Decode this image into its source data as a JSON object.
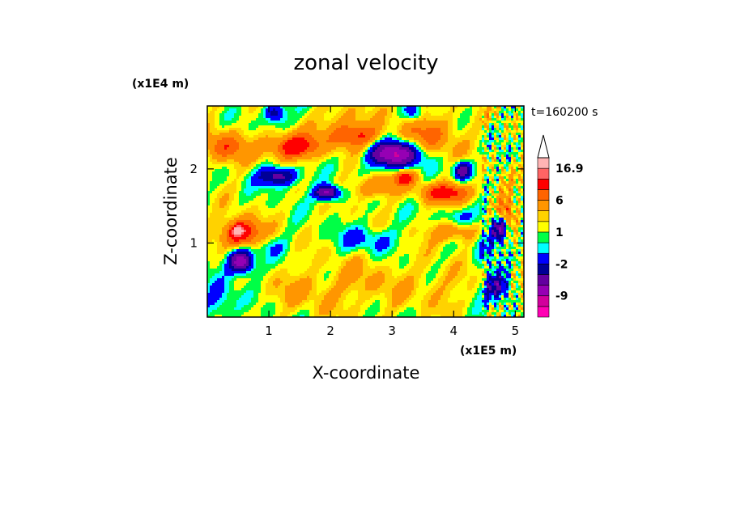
{
  "chart_data": {
    "type": "heatmap",
    "title": "zonal velocity",
    "xlabel": "X-coordinate",
    "ylabel": "Z-coordinate",
    "x_unit": "(x1E5 m)",
    "y_unit": "(x1E4 m)",
    "time_label": "t=160200 s",
    "xlim": [
      0,
      5.14
    ],
    "ylim": [
      0,
      2.85
    ],
    "x_ticks": [
      "1",
      "2",
      "3",
      "4",
      "5"
    ],
    "x_tick_values": [
      1,
      2,
      3,
      4,
      5
    ],
    "y_ticks": [
      "1",
      "2"
    ],
    "y_tick_values": [
      1,
      2
    ],
    "colorbar": {
      "labels": [
        "16.9",
        "6",
        "1",
        "-2",
        "-9"
      ],
      "label_values": [
        16.9,
        6,
        1,
        -2,
        -9
      ],
      "levels": [
        -15,
        -12,
        -9,
        -6,
        -4,
        -2,
        -1,
        0,
        1,
        2,
        4,
        6,
        9,
        12,
        16.9
      ],
      "colors": [
        "#ff00b4",
        "#d2009c",
        "#9600b4",
        "#6400a0",
        "#000096",
        "#0000ff",
        "#00ffff",
        "#00ff46",
        "#ffff00",
        "#ffd200",
        "#ff9600",
        "#ff6400",
        "#ff0000",
        "#ff6464",
        "#ffb4b4"
      ],
      "extend_top": true
    },
    "features": [
      {
        "x": 3.05,
        "z": 2.2,
        "sx": 0.28,
        "sz": 0.12,
        "v": -13
      },
      {
        "x": 0.55,
        "z": 0.75,
        "sx": 0.14,
        "sz": 0.11,
        "v": -12
      },
      {
        "x": 1.95,
        "z": 1.68,
        "sx": 0.14,
        "sz": 0.07,
        "v": -11
      },
      {
        "x": 1.15,
        "z": 1.9,
        "sx": 0.22,
        "sz": 0.09,
        "v": -8
      },
      {
        "x": 4.15,
        "z": 1.98,
        "sx": 0.1,
        "sz": 0.08,
        "v": -9
      },
      {
        "x": 4.75,
        "z": 1.2,
        "sx": 0.09,
        "sz": 0.12,
        "v": -10
      },
      {
        "x": 4.72,
        "z": 0.4,
        "sx": 0.15,
        "sz": 0.13,
        "v": -7
      },
      {
        "x": 1.1,
        "z": 2.75,
        "sx": 0.12,
        "sz": 0.1,
        "v": -6
      },
      {
        "x": 3.35,
        "z": 2.75,
        "sx": 0.1,
        "sz": 0.08,
        "v": -4
      },
      {
        "x": 1.4,
        "z": 2.3,
        "sx": 0.3,
        "sz": 0.12,
        "v": 8
      },
      {
        "x": 0.55,
        "z": 1.12,
        "sx": 0.22,
        "sz": 0.14,
        "v": 9
      },
      {
        "x": 0.5,
        "z": 1.17,
        "sx": 0.05,
        "sz": 0.04,
        "v": 14
      },
      {
        "x": 2.4,
        "z": 2.45,
        "sx": 0.3,
        "sz": 0.12,
        "v": 6
      },
      {
        "x": 3.9,
        "z": 1.68,
        "sx": 0.3,
        "sz": 0.09,
        "v": 7
      },
      {
        "x": 3.2,
        "z": 1.88,
        "sx": 0.14,
        "sz": 0.07,
        "v": 6
      },
      {
        "x": 2.7,
        "z": 1.75,
        "sx": 0.25,
        "sz": 0.1,
        "v": 4
      },
      {
        "x": 4.0,
        "z": 1.15,
        "sx": 0.3,
        "sz": 0.1,
        "v": 4
      },
      {
        "x": 3.6,
        "z": 2.45,
        "sx": 0.35,
        "sz": 0.2,
        "v": 4
      },
      {
        "x": 0.3,
        "z": 2.3,
        "sx": 0.25,
        "sz": 0.15,
        "v": 5
      },
      {
        "x": 4.85,
        "z": 1.4,
        "sx": 0.12,
        "sz": 0.15,
        "v": 6
      },
      {
        "x": 2.6,
        "z": 1.05,
        "sx": 0.35,
        "sz": 0.12,
        "v": -3
      },
      {
        "x": 4.1,
        "z": 1.35,
        "sx": 0.2,
        "sz": 0.08,
        "v": -3
      },
      {
        "x": 4.5,
        "z": 1.05,
        "sx": 0.12,
        "sz": 0.25,
        "v": -3
      },
      {
        "x": 0.9,
        "z": 0.95,
        "sx": 0.25,
        "sz": 0.1,
        "v": -2
      },
      {
        "x": 2.5,
        "z": 0.45,
        "sx": 0.6,
        "sz": 0.25,
        "v": 1.8
      },
      {
        "x": 1.5,
        "z": 0.35,
        "sx": 0.35,
        "sz": 0.18,
        "v": 1.5
      },
      {
        "x": 3.8,
        "z": 0.4,
        "sx": 0.3,
        "sz": 0.2,
        "v": 1.5
      },
      {
        "x": 2.2,
        "z": 2.7,
        "sx": 0.25,
        "sz": 0.15,
        "v": 2
      },
      {
        "x": 0.2,
        "z": 0.2,
        "sx": 0.2,
        "sz": 0.2,
        "v": -3
      }
    ]
  }
}
